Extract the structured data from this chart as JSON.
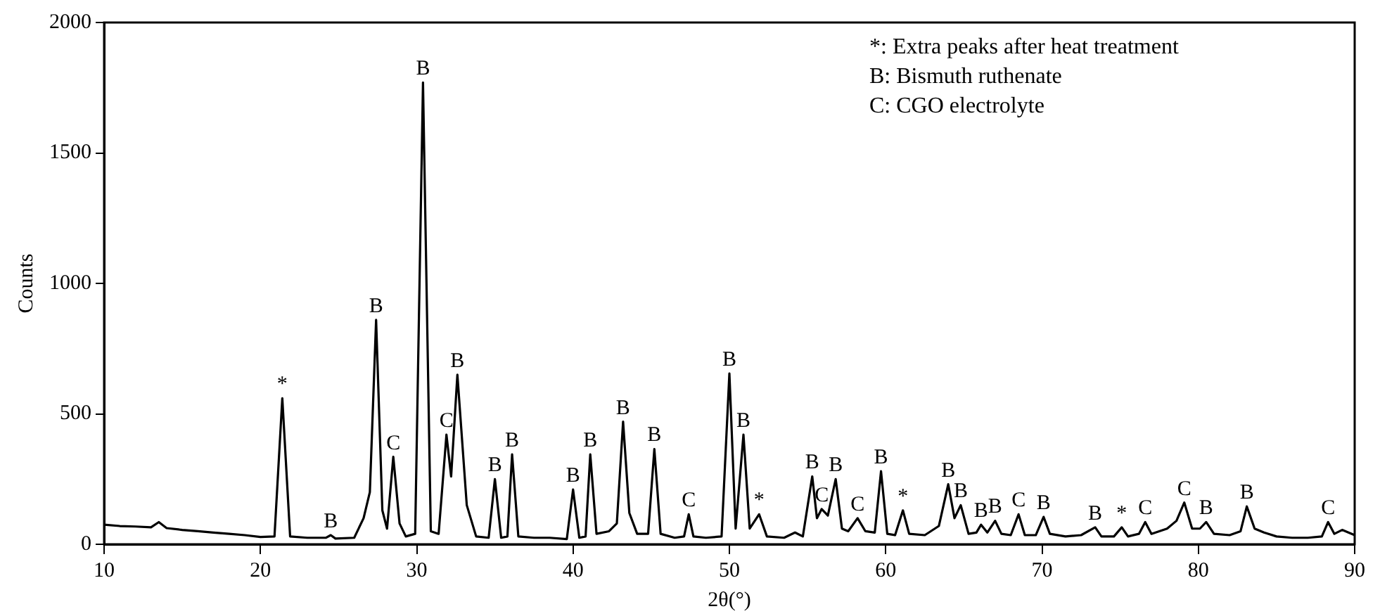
{
  "chart_data": {
    "type": "line",
    "xlabel": "2θ(°)",
    "ylabel": "Counts",
    "xlim": [
      10,
      90
    ],
    "xticks": [
      10,
      20,
      30,
      40,
      50,
      60,
      70,
      80,
      90
    ],
    "ylim": [
      0,
      2000
    ],
    "yticks": [
      0,
      500,
      1000,
      1500,
      2000
    ],
    "legend": false,
    "marker": "none",
    "line_style": "solid",
    "series": [
      {
        "color": "#000000",
        "x": [
          10,
          11,
          12,
          13,
          13.5,
          14,
          15,
          16,
          17,
          18,
          19,
          20,
          20.9,
          21.4,
          21.9,
          23,
          24.2,
          24.5,
          24.8,
          26,
          26.6,
          27,
          27.4,
          27.8,
          28.1,
          28.5,
          28.9,
          29.3,
          29.9,
          30.4,
          30.9,
          31.4,
          31.9,
          32.2,
          32.6,
          33.2,
          33.8,
          34.6,
          35,
          35.4,
          35.8,
          36.1,
          36.5,
          37.5,
          38.5,
          39.6,
          40,
          40.4,
          40.8,
          41.1,
          41.5,
          42.3,
          42.8,
          43.2,
          43.6,
          44.1,
          44.8,
          45.2,
          45.6,
          46.5,
          47.1,
          47.4,
          47.7,
          48.5,
          49.5,
          50,
          50.4,
          50.9,
          51.3,
          51.9,
          52.4,
          53.5,
          54.2,
          54.7,
          55.3,
          55.6,
          55.9,
          56.3,
          56.8,
          57.2,
          57.6,
          58.2,
          58.7,
          59.3,
          59.7,
          60.1,
          60.6,
          61.1,
          61.5,
          62.5,
          63.4,
          64,
          64.4,
          64.8,
          65.3,
          65.8,
          66.1,
          66.5,
          67,
          67.4,
          68,
          68.5,
          68.9,
          69.6,
          70.1,
          70.5,
          71.5,
          72.5,
          73.4,
          73.8,
          74.6,
          75.1,
          75.5,
          76.2,
          76.6,
          77,
          78,
          78.6,
          79.1,
          79.6,
          80.1,
          80.5,
          81,
          82,
          82.7,
          83.1,
          83.6,
          84.2,
          85,
          86,
          87,
          87.9,
          88.3,
          88.7,
          89.2,
          90
        ],
        "values": [
          75,
          70,
          68,
          65,
          85,
          62,
          55,
          50,
          45,
          40,
          35,
          28,
          30,
          560,
          30,
          25,
          25,
          35,
          22,
          25,
          100,
          200,
          860,
          130,
          60,
          335,
          80,
          30,
          40,
          1770,
          50,
          40,
          420,
          260,
          650,
          150,
          30,
          25,
          250,
          25,
          30,
          345,
          30,
          25,
          25,
          20,
          210,
          25,
          30,
          345,
          40,
          50,
          80,
          470,
          120,
          40,
          40,
          365,
          40,
          25,
          30,
          115,
          30,
          25,
          30,
          655,
          60,
          420,
          60,
          115,
          30,
          25,
          45,
          30,
          260,
          100,
          135,
          110,
          250,
          60,
          50,
          100,
          50,
          45,
          280,
          40,
          35,
          130,
          40,
          35,
          70,
          230,
          100,
          150,
          40,
          45,
          75,
          45,
          90,
          40,
          35,
          115,
          35,
          35,
          105,
          40,
          30,
          35,
          65,
          30,
          30,
          65,
          30,
          40,
          85,
          40,
          60,
          90,
          160,
          60,
          60,
          85,
          40,
          35,
          50,
          145,
          60,
          45,
          30,
          25,
          25,
          30,
          85,
          40,
          55,
          35
        ]
      }
    ],
    "annotations": [
      "*: Extra peaks after heat treatment",
      "B: Bismuth ruthenate",
      "C: CGO electrolyte",
      {
        "text": "*",
        "x": 21.4,
        "y": 560
      },
      {
        "text": "B",
        "x": 24.5,
        "y": 35
      },
      {
        "text": "B",
        "x": 27.4,
        "y": 860
      },
      {
        "text": "C",
        "x": 28.5,
        "y": 335
      },
      {
        "text": "B",
        "x": 30.4,
        "y": 1770
      },
      {
        "text": "C",
        "x": 31.9,
        "y": 420
      },
      {
        "text": "B",
        "x": 32.6,
        "y": 650
      },
      {
        "text": "B",
        "x": 35,
        "y": 250
      },
      {
        "text": "B",
        "x": 36.1,
        "y": 345
      },
      {
        "text": "B",
        "x": 40,
        "y": 210
      },
      {
        "text": "B",
        "x": 41.1,
        "y": 345
      },
      {
        "text": "B",
        "x": 43.2,
        "y": 470
      },
      {
        "text": "B",
        "x": 45.2,
        "y": 365
      },
      {
        "text": "C",
        "x": 47.4,
        "y": 115
      },
      {
        "text": "B",
        "x": 50,
        "y": 655
      },
      {
        "text": "B",
        "x": 50.9,
        "y": 420
      },
      {
        "text": "*",
        "x": 51.9,
        "y": 115
      },
      {
        "text": "B",
        "x": 55.3,
        "y": 260
      },
      {
        "text": "C",
        "x": 55.9,
        "y": 135
      },
      {
        "text": "B",
        "x": 56.8,
        "y": 250
      },
      {
        "text": "C",
        "x": 58.2,
        "y": 100
      },
      {
        "text": "B",
        "x": 59.7,
        "y": 280
      },
      {
        "text": "*",
        "x": 61.1,
        "y": 130
      },
      {
        "text": "B",
        "x": 64,
        "y": 230
      },
      {
        "text": "B",
        "x": 64.8,
        "y": 150
      },
      {
        "text": "B",
        "x": 66.1,
        "y": 75
      },
      {
        "text": "B",
        "x": 67,
        "y": 90
      },
      {
        "text": "C",
        "x": 68.5,
        "y": 115
      },
      {
        "text": "B",
        "x": 70.1,
        "y": 105
      },
      {
        "text": "B",
        "x": 73.4,
        "y": 65
      },
      {
        "text": "*",
        "x": 75.1,
        "y": 65
      },
      {
        "text": "C",
        "x": 76.6,
        "y": 85
      },
      {
        "text": "C",
        "x": 79.1,
        "y": 160
      },
      {
        "text": "B",
        "x": 80.5,
        "y": 85
      },
      {
        "text": "B",
        "x": 83.1,
        "y": 145
      },
      {
        "text": "C",
        "x": 88.3,
        "y": 85
      }
    ]
  }
}
